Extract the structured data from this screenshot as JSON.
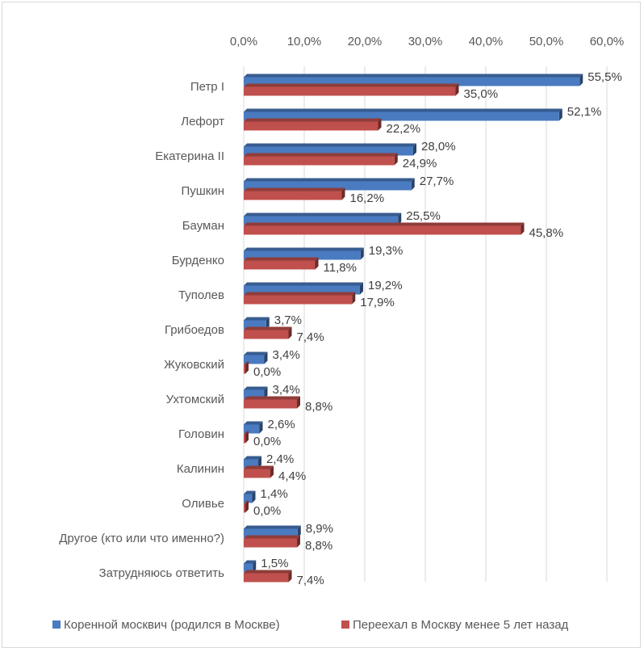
{
  "chart_data": {
    "type": "bar",
    "orientation": "horizontal",
    "style": "3d-clustered",
    "categories": [
      "Петр I",
      "Лефорт",
      "Екатерина II",
      "Пушкин",
      "Бауман",
      "Бурденко",
      "Туполев",
      "Грибоедов",
      "Жуковский",
      "Ухтомский",
      "Головин",
      "Калинин",
      "Оливье",
      "Другое (кто или что именно?)",
      "Затрудняюсь ответить"
    ],
    "series": [
      {
        "name": "Коренной москвич (родился в Москве)",
        "color": "#4a7bc0",
        "values": [
          55.5,
          52.1,
          28.0,
          27.7,
          25.5,
          19.3,
          19.2,
          3.7,
          3.4,
          3.4,
          2.6,
          2.4,
          1.4,
          8.9,
          1.5
        ],
        "labels": [
          "55,5%",
          "52,1%",
          "28,0%",
          "27,7%",
          "25,5%",
          "19,3%",
          "19,2%",
          "3,7%",
          "3,4%",
          "3,4%",
          "2,6%",
          "2,4%",
          "1,4%",
          "8,9%",
          "1,5%"
        ]
      },
      {
        "name": "Переехал в Москву менее 5 лет назад",
        "color": "#c0504d",
        "values": [
          35.0,
          22.2,
          24.9,
          16.2,
          45.8,
          11.8,
          17.9,
          7.4,
          0.0,
          8.8,
          0.0,
          4.4,
          0.0,
          8.8,
          7.4
        ],
        "labels": [
          "35,0%",
          "22,2%",
          "24,9%",
          "16,2%",
          "45,8%",
          "11,8%",
          "17,9%",
          "7,4%",
          "0,0%",
          "8,8%",
          "0,0%",
          "4,4%",
          "0,0%",
          "8,8%",
          "7,4%"
        ]
      }
    ],
    "xlim": [
      0,
      60
    ],
    "xticks": [
      0,
      10,
      20,
      30,
      40,
      50,
      60
    ],
    "xtick_labels": [
      "0,0%",
      "10,0%",
      "20,0%",
      "30,0%",
      "40,0%",
      "50,0%",
      "60,0%"
    ],
    "axis_position": "top",
    "grid": true,
    "legend_position": "bottom",
    "title": "",
    "xlabel": "",
    "ylabel": ""
  }
}
